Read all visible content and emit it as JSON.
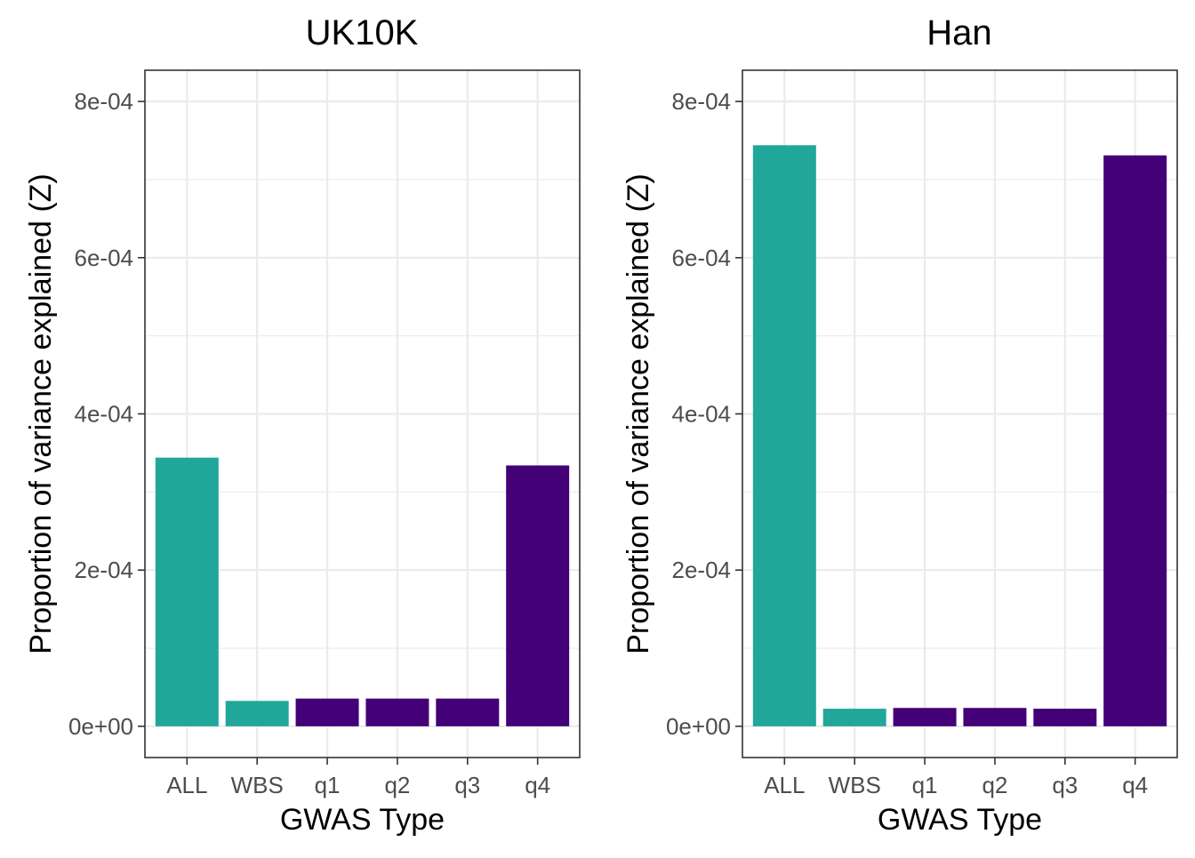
{
  "chart_data": [
    {
      "type": "bar",
      "title": "UK10K",
      "xlabel": "GWAS Type",
      "ylabel": "Proportion of variance explained (Z)",
      "categories": [
        "ALL",
        "WBS",
        "q1",
        "q2",
        "q3",
        "q4"
      ],
      "values": [
        0.000344,
        3.25e-05,
        3.55e-05,
        3.55e-05,
        3.55e-05,
        0.000334
      ],
      "bar_colors": [
        "#21a69a",
        "#21a69a",
        "#440077",
        "#440077",
        "#440077",
        "#440077"
      ],
      "yticks": [
        0,
        0.0002,
        0.0004,
        0.0006,
        0.0008
      ],
      "ytick_labels": [
        "0e+00",
        "2e-04",
        "4e-04",
        "6e-04",
        "8e-04"
      ],
      "ylim": [
        -4e-05,
        0.00084
      ],
      "grid": true,
      "legend": "none"
    },
    {
      "type": "bar",
      "title": "Han",
      "xlabel": "GWAS Type",
      "ylabel": "Proportion of variance explained (Z)",
      "categories": [
        "ALL",
        "WBS",
        "q1",
        "q2",
        "q3",
        "q4"
      ],
      "values": [
        0.000744,
        2.25e-05,
        2.35e-05,
        2.35e-05,
        2.25e-05,
        0.000731
      ],
      "bar_colors": [
        "#21a69a",
        "#21a69a",
        "#440077",
        "#440077",
        "#440077",
        "#440077"
      ],
      "yticks": [
        0,
        0.0002,
        0.0004,
        0.0006,
        0.0008
      ],
      "ytick_labels": [
        "0e+00",
        "2e-04",
        "4e-04",
        "6e-04",
        "8e-04"
      ],
      "ylim": [
        -4e-05,
        0.00084
      ],
      "grid": true,
      "legend": "none"
    }
  ]
}
